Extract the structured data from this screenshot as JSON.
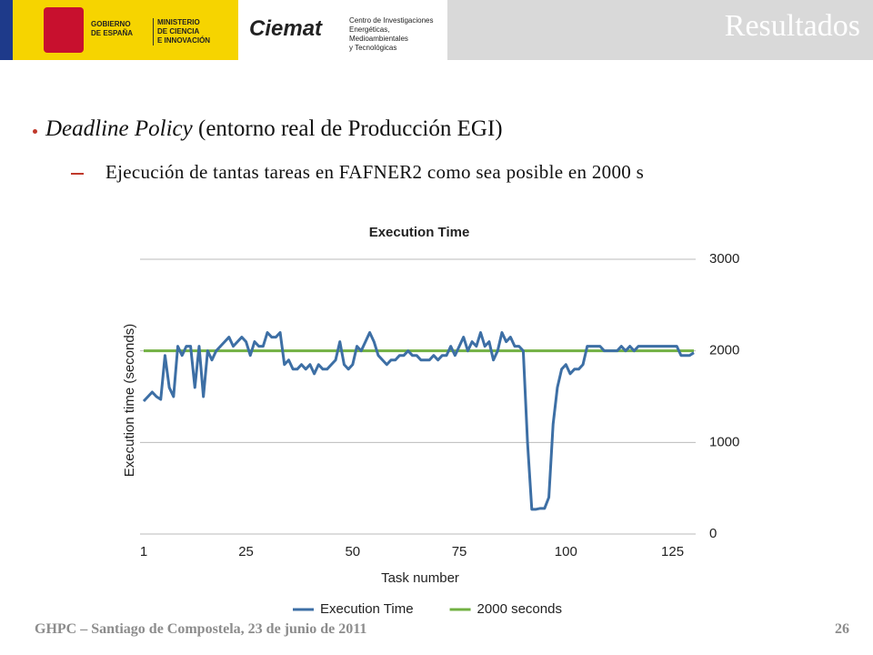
{
  "header": {
    "title": "Resultados",
    "gov_line1": "GOBIERNO",
    "gov_line2": "DE ESPAÑA",
    "min_line1": "MINISTERIO",
    "min_line2": "DE CIENCIA",
    "min_line3": "E INNOVACIÓN",
    "ciemat": "Ciemat",
    "ciemat_line1": "Centro de Investigaciones",
    "ciemat_line2": "Energéticas, Medioambientales",
    "ciemat_line3": "y Tecnológicas"
  },
  "bullet": {
    "italic": "Deadline Policy",
    "text": " (entorno real de Producción EGI)",
    "sub": "Ejecución de tantas tareas en FAFNER2 como sea posible en 2000 s"
  },
  "footer": {
    "left": "GHPC – Santiago de Compostela, 23 de junio de 2011",
    "page": "26"
  },
  "chart_data": {
    "type": "line",
    "title": "Execution Time",
    "xlabel": "Task number",
    "ylabel": "Execution time (seconds)",
    "xlim": [
      1,
      130
    ],
    "xticks": [
      1,
      25,
      50,
      75,
      100,
      125
    ],
    "ylim": [
      0,
      3000
    ],
    "yticks": [
      0,
      1000,
      2000,
      3000
    ],
    "grid": true,
    "legend": "bottom",
    "series": [
      {
        "name": "Execution Time",
        "color": "#3d6fa5",
        "x": [
          1,
          2,
          3,
          4,
          5,
          6,
          7,
          8,
          9,
          10,
          11,
          12,
          13,
          14,
          15,
          16,
          17,
          18,
          19,
          20,
          21,
          22,
          23,
          24,
          25,
          26,
          27,
          28,
          29,
          30,
          31,
          32,
          33,
          34,
          35,
          36,
          37,
          38,
          39,
          40,
          41,
          42,
          43,
          44,
          45,
          46,
          47,
          48,
          49,
          50,
          51,
          52,
          53,
          54,
          55,
          56,
          57,
          58,
          59,
          60,
          61,
          62,
          63,
          64,
          65,
          66,
          67,
          68,
          69,
          70,
          71,
          72,
          73,
          74,
          75,
          76,
          77,
          78,
          79,
          80,
          81,
          82,
          83,
          84,
          85,
          86,
          87,
          88,
          89,
          90,
          91,
          92,
          93,
          94,
          95,
          96,
          97,
          98,
          99,
          100,
          101,
          102,
          103,
          104,
          105,
          106,
          107,
          108,
          109,
          110,
          111,
          112,
          113,
          114,
          115,
          116,
          117,
          118,
          119,
          120,
          121,
          122,
          123,
          124,
          125,
          126,
          127,
          128,
          129,
          130
        ],
        "values": [
          1450,
          1500,
          1550,
          1500,
          1470,
          1950,
          1600,
          1500,
          2050,
          1950,
          2050,
          2050,
          1600,
          2050,
          1500,
          2000,
          1900,
          2000,
          2050,
          2100,
          2150,
          2050,
          2100,
          2150,
          2100,
          1950,
          2100,
          2050,
          2050,
          2200,
          2150,
          2150,
          2200,
          1850,
          1900,
          1800,
          1800,
          1850,
          1800,
          1850,
          1750,
          1850,
          1800,
          1800,
          1850,
          1900,
          2100,
          1850,
          1800,
          1850,
          2050,
          2000,
          2100,
          2200,
          2100,
          1950,
          1900,
          1850,
          1900,
          1900,
          1950,
          1950,
          2000,
          1950,
          1950,
          1900,
          1900,
          1900,
          1950,
          1900,
          1950,
          1950,
          2050,
          1950,
          2050,
          2150,
          2000,
          2100,
          2050,
          2200,
          2050,
          2100,
          1900,
          2000,
          2200,
          2100,
          2150,
          2050,
          2050,
          2000,
          1000,
          270,
          270,
          280,
          280,
          400,
          1200,
          1600,
          1800,
          1850,
          1750,
          1800,
          1800,
          1850,
          2050,
          2050,
          2050,
          2050,
          2000,
          2000,
          2000,
          2000,
          2050,
          2000,
          2050,
          2000,
          2050,
          2050,
          2050,
          2050,
          2050,
          2050,
          2050,
          2050,
          2050,
          2050,
          1950,
          1950,
          1950,
          1980
        ]
      },
      {
        "name": "2000 seconds",
        "color": "#72b043",
        "x": [
          1,
          130
        ],
        "values": [
          2000,
          2000
        ]
      }
    ]
  }
}
